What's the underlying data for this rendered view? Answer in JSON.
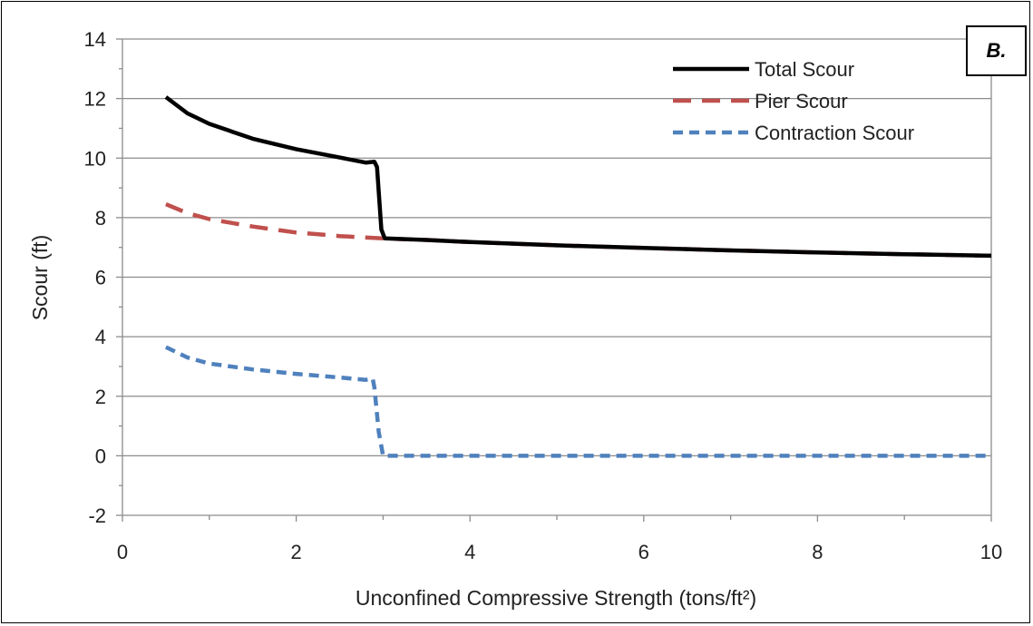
{
  "panel_label": "B.",
  "colors": {
    "total": "#000000",
    "pier": "#C0504D",
    "contraction": "#4F81BD",
    "grid": "#8c8c8c"
  },
  "chart_data": {
    "type": "line",
    "xlabel": "Unconfined Compressive Strength (tons/ft²)",
    "ylabel": "Scour (ft)",
    "xlim": [
      0,
      10
    ],
    "ylim": [
      -2,
      14
    ],
    "xticks": [
      0,
      2,
      4,
      6,
      8,
      10
    ],
    "yticks": [
      -2,
      0,
      2,
      4,
      6,
      8,
      10,
      12,
      14
    ],
    "grid": "horizontal",
    "legend": "top-right",
    "series": [
      {
        "name": "Total Scour",
        "style": "solid",
        "x": [
          0.5,
          0.75,
          1.0,
          1.5,
          2.0,
          2.5,
          2.8,
          2.9,
          2.93,
          2.98,
          3.02,
          3.5,
          4.0,
          5.0,
          6.0,
          7.0,
          8.0,
          9.0,
          10.0
        ],
        "y": [
          12.05,
          11.5,
          11.15,
          10.65,
          10.3,
          10.02,
          9.85,
          9.88,
          9.7,
          7.6,
          7.3,
          7.25,
          7.18,
          7.07,
          6.98,
          6.9,
          6.83,
          6.77,
          6.72
        ]
      },
      {
        "name": "Pier Scour",
        "style": "dashed",
        "x": [
          0.5,
          0.75,
          1.0,
          1.5,
          2.0,
          2.5,
          3.0,
          3.5,
          4.0,
          5.0,
          6.0,
          7.0,
          8.0,
          9.0,
          10.0
        ],
        "y": [
          8.45,
          8.15,
          7.95,
          7.7,
          7.5,
          7.38,
          7.3,
          7.25,
          7.18,
          7.07,
          6.98,
          6.9,
          6.83,
          6.77,
          6.72
        ]
      },
      {
        "name": "Contraction Scour",
        "style": "short-dashed",
        "x": [
          0.5,
          0.75,
          1.0,
          1.5,
          2.0,
          2.5,
          2.8,
          2.88,
          2.9,
          2.95,
          3.0,
          3.05,
          4.0,
          5.0,
          6.0,
          7.0,
          8.0,
          9.0,
          10.0
        ],
        "y": [
          3.65,
          3.3,
          3.1,
          2.9,
          2.75,
          2.63,
          2.55,
          2.6,
          2.3,
          0.8,
          0.0,
          0.0,
          0.0,
          0.0,
          0.0,
          0.0,
          0.0,
          0.0,
          0.0
        ]
      }
    ]
  }
}
